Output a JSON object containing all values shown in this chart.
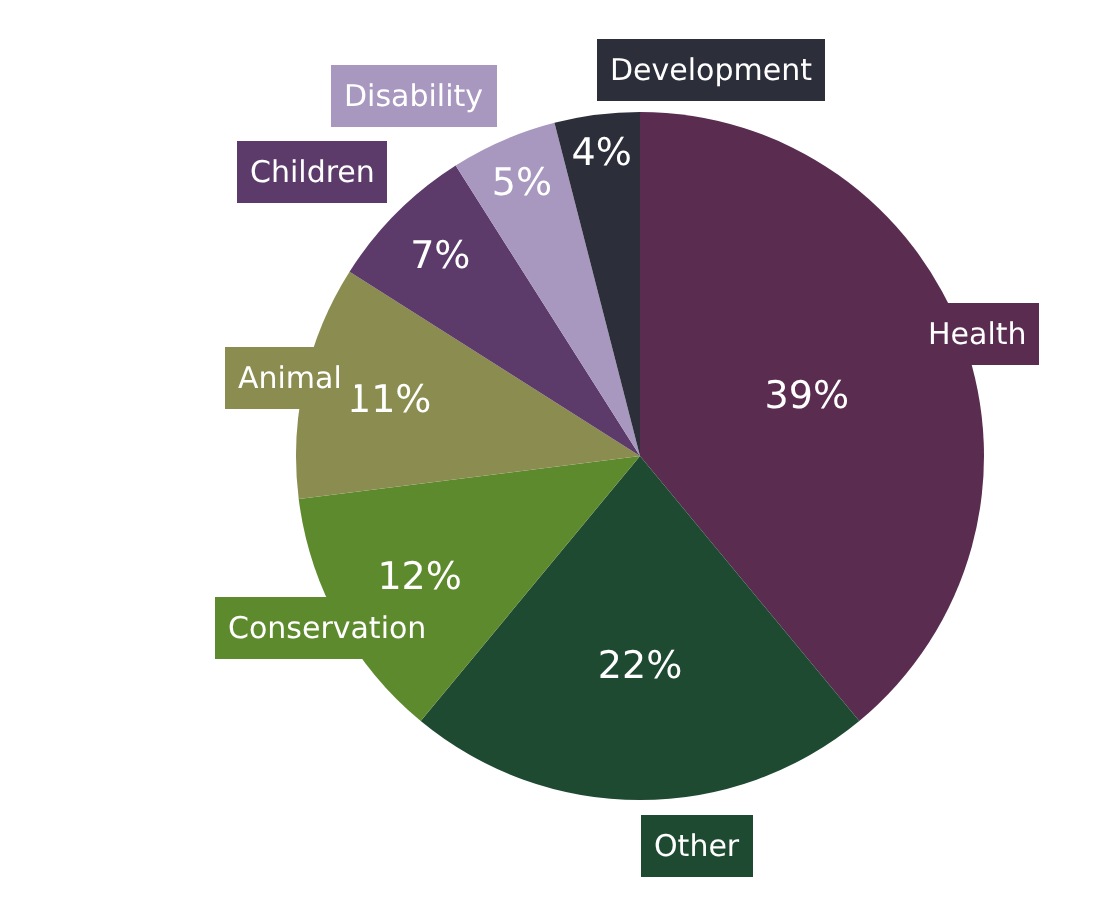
{
  "chart_data": {
    "type": "pie",
    "categories": [
      "Health",
      "Other",
      "Conservation",
      "Animal",
      "Children",
      "Disability",
      "Development"
    ],
    "values": [
      39,
      22,
      12,
      11,
      7,
      5,
      4
    ],
    "value_labels": [
      "39%",
      "22%",
      "12%",
      "11%",
      "7%",
      "5%",
      "4%"
    ],
    "colors": [
      "#5a2d50",
      "#1e4a32",
      "#5e8a2e",
      "#8a8c50",
      "#5c3a6a",
      "#a898c0",
      "#2c2e3a"
    ],
    "legend": false
  }
}
